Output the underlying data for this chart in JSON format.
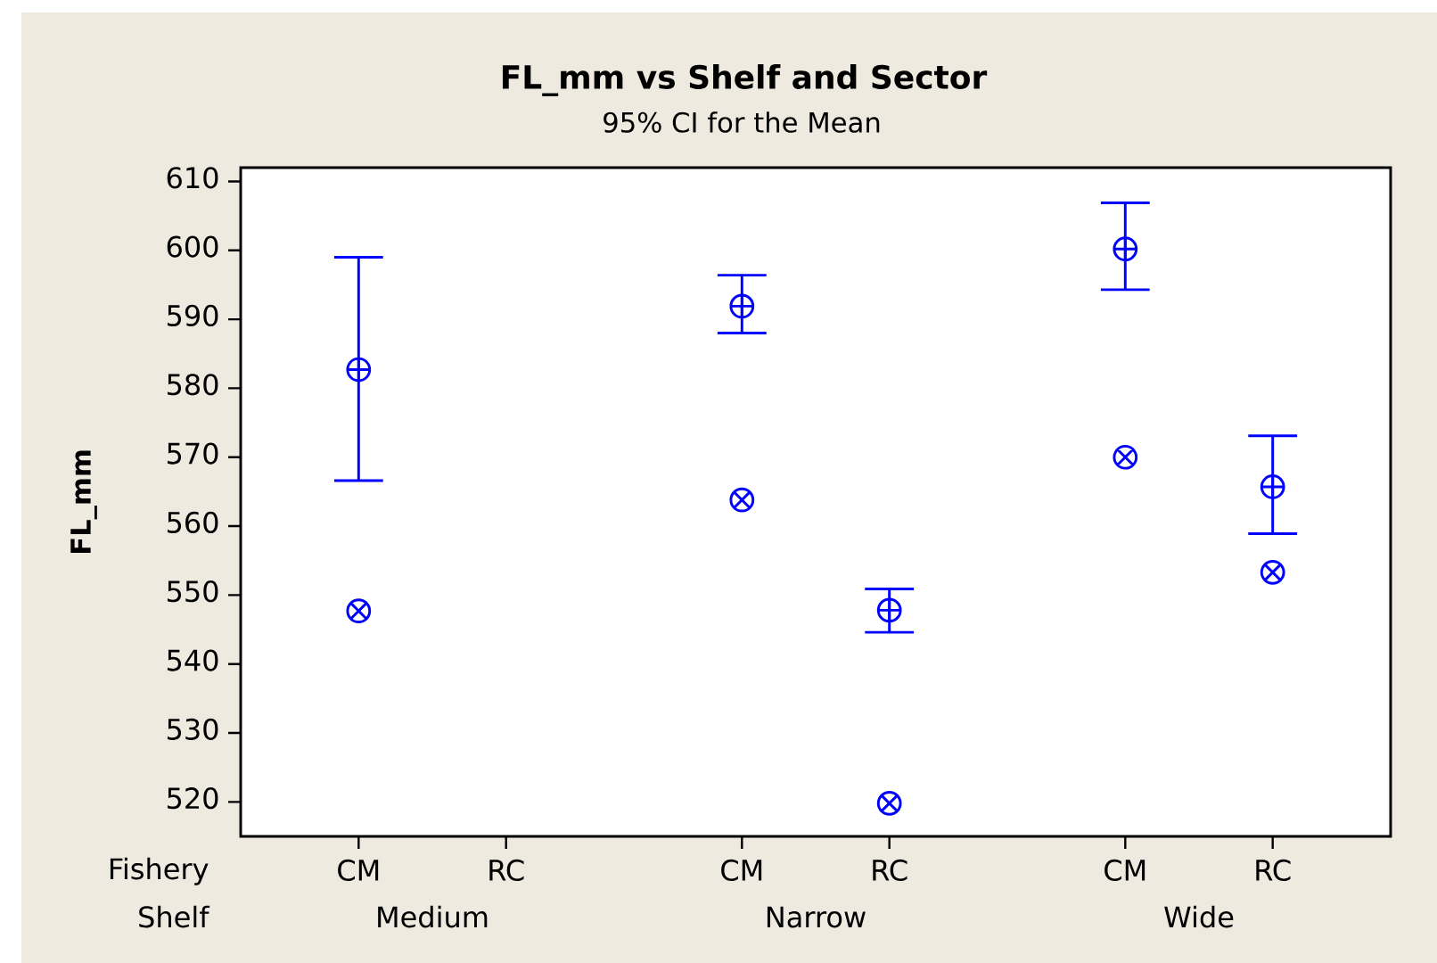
{
  "chart_data": {
    "type": "scatter",
    "title": "FL_mm vs Shelf and Sector",
    "subtitle": "95% CI for the Mean",
    "ylabel": "FL_mm",
    "categories": [
      "CM",
      "RC",
      "CM",
      "RC",
      "CM",
      "RC"
    ],
    "annotations": [
      "Fishery",
      "Shelf",
      "Medium",
      "Narrow",
      "Wide"
    ],
    "series": [
      {
        "color": "#0000ff",
        "values": [
          582.7,
          null,
          591.9,
          547.8,
          600.2,
          565.7
        ],
        "errors": [
          [
            566.6,
            599.0
          ],
          null,
          [
            588.0,
            596.4
          ],
          [
            544.6,
            550.9
          ],
          [
            594.3,
            606.9
          ],
          [
            558.9,
            573.1
          ]
        ]
      },
      {
        "color": "#0000ff",
        "marker": "cross",
        "values": [
          547.7,
          null,
          563.8,
          519.8,
          570.0,
          553.3
        ]
      }
    ],
    "ylim": [
      515,
      612
    ],
    "yticks": [
      520,
      530,
      540,
      550,
      560,
      570,
      580,
      590,
      600,
      610
    ]
  }
}
